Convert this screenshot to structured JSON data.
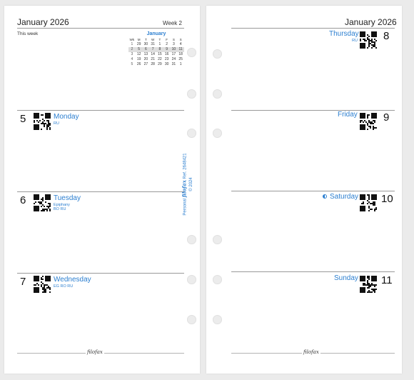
{
  "left_page": {
    "title": "January 2026",
    "week_label": "Week 2",
    "this_week_label": "This week",
    "mini_calendar": {
      "month": "January",
      "headers": [
        "Wk",
        "M",
        "T",
        "W",
        "T",
        "F",
        "S",
        "S"
      ],
      "rows": [
        [
          "1",
          "29",
          "30",
          "31",
          "1",
          "2",
          "3",
          "4"
        ],
        [
          "2",
          "5",
          "6",
          "7",
          "8",
          "9",
          "10",
          "11"
        ],
        [
          "3",
          "12",
          "13",
          "14",
          "15",
          "16",
          "17",
          "18"
        ],
        [
          "4",
          "19",
          "20",
          "21",
          "22",
          "23",
          "24",
          "25"
        ],
        [
          "5",
          "26",
          "27",
          "28",
          "29",
          "30",
          "31",
          "1"
        ]
      ],
      "highlighted_week": "2"
    },
    "days": [
      {
        "num": "5",
        "name": "Monday",
        "notes": [
          "RU"
        ]
      },
      {
        "num": "6",
        "name": "Tuesday",
        "notes": [
          "Epiphany",
          "BO RU"
        ]
      },
      {
        "num": "7",
        "name": "Wednesday",
        "notes": [
          "EG RO RU"
        ]
      }
    ],
    "footer_brand": "filofax"
  },
  "right_page": {
    "title": "January 2026",
    "days": [
      {
        "num": "8",
        "name": "Thursday",
        "notes": [
          "RU"
        ]
      },
      {
        "num": "9",
        "name": "Friday",
        "notes": []
      },
      {
        "num": "10",
        "name": "Saturday",
        "notes": [],
        "moon_icon": "first-quarter-moon-icon"
      },
      {
        "num": "11",
        "name": "Sunday",
        "notes": []
      }
    ],
    "footer_brand": "filofax"
  },
  "imprint": {
    "size": "Personal",
    "brand": "filofax",
    "ref": "Ref. 2648421",
    "copyright": "© 2024"
  },
  "colors": {
    "accent_blue": "#2c7fd0",
    "rule_gray": "#9a9a9a",
    "background": "#ebebeb"
  }
}
